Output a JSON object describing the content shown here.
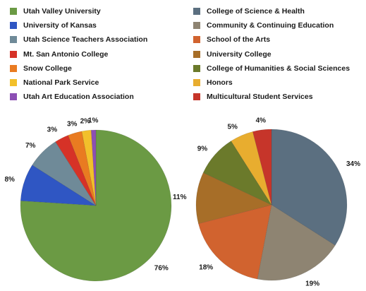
{
  "chart_data": [
    {
      "type": "pie",
      "categories": [
        "Utah Valley University",
        "University of Kansas",
        "Utah Science Teachers Association",
        "Mt. San Antonio College",
        "Snow College",
        "National Park Service",
        "Utah Art Education Association"
      ],
      "values": [
        76,
        8,
        7,
        3,
        3,
        2,
        1
      ],
      "labels": [
        "76%",
        "8%",
        "7%",
        "3%",
        "3%",
        "2%",
        "1%"
      ],
      "colors": [
        "#6b9a44",
        "#2f56c3",
        "#6f8a98",
        "#d63227",
        "#e97b21",
        "#f2c02b",
        "#8c4fb4"
      ],
      "legend": "top",
      "title": ""
    },
    {
      "type": "pie",
      "categories": [
        "College of Science & Health",
        "Community & Continuing Education",
        "School of the Arts",
        "University College",
        "College of Humanities & Social Sciences",
        "Honors",
        "Multicultural Student Services"
      ],
      "values": [
        34,
        19,
        18,
        11,
        9,
        5,
        4
      ],
      "labels": [
        "34%",
        "19%",
        "18%",
        "11%",
        "9%",
        "5%",
        "4%"
      ],
      "colors": [
        "#5b6f80",
        "#8e8472",
        "#d1632f",
        "#a76e28",
        "#6b7a2b",
        "#e8ad2f",
        "#c6352a"
      ],
      "legend": "top",
      "title": ""
    }
  ]
}
